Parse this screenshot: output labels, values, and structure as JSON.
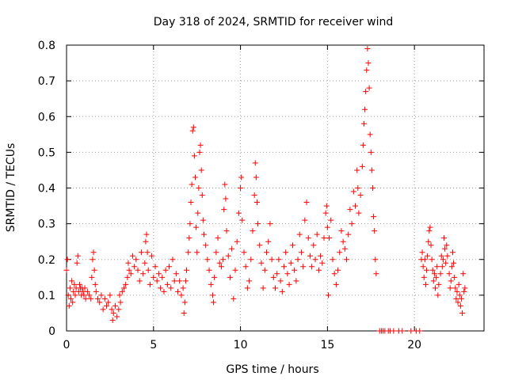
{
  "chart_data": {
    "type": "scatter",
    "title": "Day 318 of 2024, SRMTID for receiver wind",
    "xlabel": "GPS time / hours",
    "ylabel": "SRMTID / TECUs",
    "xlim": [
      0,
      24
    ],
    "ylim": [
      0,
      0.8
    ],
    "xticks": [
      0,
      5,
      10,
      15,
      20
    ],
    "yticks": [
      0,
      0.1,
      0.2,
      0.3,
      0.4,
      0.5,
      0.6,
      0.7,
      0.8
    ],
    "grid": true,
    "marker": "plus",
    "series": [
      {
        "name": "SRMTID",
        "color": "#ff0000",
        "points": [
          [
            0.0,
            0.17
          ],
          [
            0.05,
            0.2
          ],
          [
            0.1,
            0.1
          ],
          [
            0.15,
            0.07
          ],
          [
            0.2,
            0.12
          ],
          [
            0.25,
            0.09
          ],
          [
            0.3,
            0.14
          ],
          [
            0.35,
            0.08
          ],
          [
            0.4,
            0.11
          ],
          [
            0.45,
            0.13
          ],
          [
            0.5,
            0.1
          ],
          [
            0.55,
            0.12
          ],
          [
            0.6,
            0.19
          ],
          [
            0.65,
            0.21
          ],
          [
            0.7,
            0.11
          ],
          [
            0.75,
            0.13
          ],
          [
            0.8,
            0.12
          ],
          [
            0.85,
            0.1
          ],
          [
            0.9,
            0.12
          ],
          [
            0.95,
            0.11
          ],
          [
            1.0,
            0.1
          ],
          [
            1.05,
            0.12
          ],
          [
            1.1,
            0.09
          ],
          [
            1.2,
            0.11
          ],
          [
            1.3,
            0.1
          ],
          [
            1.4,
            0.09
          ],
          [
            1.45,
            0.15
          ],
          [
            1.5,
            0.2
          ],
          [
            1.55,
            0.22
          ],
          [
            1.6,
            0.17
          ],
          [
            1.65,
            0.13
          ],
          [
            1.7,
            0.11
          ],
          [
            1.8,
            0.09
          ],
          [
            1.9,
            0.08
          ],
          [
            2.0,
            0.1
          ],
          [
            2.1,
            0.06
          ],
          [
            2.2,
            0.09
          ],
          [
            2.3,
            0.07
          ],
          [
            2.4,
            0.08
          ],
          [
            2.5,
            0.1
          ],
          [
            2.6,
            0.06
          ],
          [
            2.65,
            0.03
          ],
          [
            2.7,
            0.05
          ],
          [
            2.8,
            0.07
          ],
          [
            2.9,
            0.04
          ],
          [
            3.0,
            0.06
          ],
          [
            3.05,
            0.1
          ],
          [
            3.1,
            0.08
          ],
          [
            3.2,
            0.11
          ],
          [
            3.3,
            0.12
          ],
          [
            3.4,
            0.13
          ],
          [
            3.5,
            0.15
          ],
          [
            3.55,
            0.19
          ],
          [
            3.6,
            0.17
          ],
          [
            3.7,
            0.16
          ],
          [
            3.8,
            0.21
          ],
          [
            3.9,
            0.18
          ],
          [
            4.0,
            0.2
          ],
          [
            4.1,
            0.17
          ],
          [
            4.2,
            0.14
          ],
          [
            4.3,
            0.22
          ],
          [
            4.4,
            0.16
          ],
          [
            4.5,
            0.19
          ],
          [
            4.55,
            0.25
          ],
          [
            4.6,
            0.27
          ],
          [
            4.65,
            0.22
          ],
          [
            4.7,
            0.17
          ],
          [
            4.8,
            0.13
          ],
          [
            4.9,
            0.21
          ],
          [
            5.0,
            0.15
          ],
          [
            5.1,
            0.18
          ],
          [
            5.2,
            0.14
          ],
          [
            5.3,
            0.16
          ],
          [
            5.4,
            0.12
          ],
          [
            5.5,
            0.15
          ],
          [
            5.6,
            0.11
          ],
          [
            5.7,
            0.17
          ],
          [
            5.8,
            0.13
          ],
          [
            5.9,
            0.18
          ],
          [
            6.0,
            0.12
          ],
          [
            6.1,
            0.2
          ],
          [
            6.2,
            0.14
          ],
          [
            6.3,
            0.16
          ],
          [
            6.4,
            0.11
          ],
          [
            6.5,
            0.14
          ],
          [
            6.6,
            0.1
          ],
          [
            6.7,
            0.12
          ],
          [
            6.75,
            0.05
          ],
          [
            6.8,
            0.08
          ],
          [
            6.85,
            0.14
          ],
          [
            6.9,
            0.17
          ],
          [
            7.0,
            0.22
          ],
          [
            7.05,
            0.26
          ],
          [
            7.1,
            0.3
          ],
          [
            7.15,
            0.36
          ],
          [
            7.2,
            0.41
          ],
          [
            7.25,
            0.56
          ],
          [
            7.3,
            0.57
          ],
          [
            7.35,
            0.49
          ],
          [
            7.4,
            0.43
          ],
          [
            7.45,
            0.29
          ],
          [
            7.5,
            0.22
          ],
          [
            7.55,
            0.33
          ],
          [
            7.6,
            0.4
          ],
          [
            7.65,
            0.5
          ],
          [
            7.7,
            0.52
          ],
          [
            7.75,
            0.45
          ],
          [
            7.8,
            0.38
          ],
          [
            7.85,
            0.31
          ],
          [
            7.9,
            0.27
          ],
          [
            8.0,
            0.24
          ],
          [
            8.1,
            0.2
          ],
          [
            8.2,
            0.17
          ],
          [
            8.3,
            0.13
          ],
          [
            8.4,
            0.1
          ],
          [
            8.45,
            0.08
          ],
          [
            8.5,
            0.15
          ],
          [
            8.6,
            0.22
          ],
          [
            8.7,
            0.26
          ],
          [
            8.8,
            0.19
          ],
          [
            8.9,
            0.18
          ],
          [
            9.0,
            0.2
          ],
          [
            9.05,
            0.34
          ],
          [
            9.1,
            0.41
          ],
          [
            9.15,
            0.37
          ],
          [
            9.2,
            0.28
          ],
          [
            9.3,
            0.21
          ],
          [
            9.4,
            0.15
          ],
          [
            9.5,
            0.23
          ],
          [
            9.6,
            0.09
          ],
          [
            9.7,
            0.17
          ],
          [
            9.8,
            0.25
          ],
          [
            9.9,
            0.33
          ],
          [
            10.0,
            0.4
          ],
          [
            10.05,
            0.43
          ],
          [
            10.1,
            0.31
          ],
          [
            10.2,
            0.22
          ],
          [
            10.3,
            0.18
          ],
          [
            10.4,
            0.12
          ],
          [
            10.5,
            0.14
          ],
          [
            10.6,
            0.2
          ],
          [
            10.7,
            0.28
          ],
          [
            10.8,
            0.38
          ],
          [
            10.85,
            0.47
          ],
          [
            10.9,
            0.43
          ],
          [
            10.95,
            0.36
          ],
          [
            11.0,
            0.3
          ],
          [
            11.1,
            0.24
          ],
          [
            11.2,
            0.19
          ],
          [
            11.3,
            0.12
          ],
          [
            11.4,
            0.17
          ],
          [
            11.5,
            0.22
          ],
          [
            11.6,
            0.25
          ],
          [
            11.7,
            0.3
          ],
          [
            11.8,
            0.2
          ],
          [
            11.9,
            0.15
          ],
          [
            12.0,
            0.12
          ],
          [
            12.1,
            0.16
          ],
          [
            12.2,
            0.2
          ],
          [
            12.3,
            0.14
          ],
          [
            12.4,
            0.11
          ],
          [
            12.5,
            0.18
          ],
          [
            12.6,
            0.22
          ],
          [
            12.7,
            0.16
          ],
          [
            12.8,
            0.13
          ],
          [
            12.9,
            0.19
          ],
          [
            13.0,
            0.24
          ],
          [
            13.1,
            0.17
          ],
          [
            13.2,
            0.14
          ],
          [
            13.3,
            0.2
          ],
          [
            13.4,
            0.27
          ],
          [
            13.5,
            0.22
          ],
          [
            13.6,
            0.18
          ],
          [
            13.7,
            0.31
          ],
          [
            13.8,
            0.36
          ],
          [
            13.9,
            0.26
          ],
          [
            14.0,
            0.21
          ],
          [
            14.1,
            0.18
          ],
          [
            14.2,
            0.24
          ],
          [
            14.3,
            0.2
          ],
          [
            14.4,
            0.27
          ],
          [
            14.5,
            0.17
          ],
          [
            14.6,
            0.21
          ],
          [
            14.7,
            0.19
          ],
          [
            14.8,
            0.26
          ],
          [
            14.9,
            0.33
          ],
          [
            14.95,
            0.35
          ],
          [
            15.0,
            0.29
          ],
          [
            15.05,
            0.1
          ],
          [
            15.1,
            0.26
          ],
          [
            15.2,
            0.31
          ],
          [
            15.3,
            0.2
          ],
          [
            15.4,
            0.16
          ],
          [
            15.5,
            0.13
          ],
          [
            15.6,
            0.17
          ],
          [
            15.7,
            0.22
          ],
          [
            15.8,
            0.28
          ],
          [
            15.9,
            0.25
          ],
          [
            16.0,
            0.23
          ],
          [
            16.1,
            0.2
          ],
          [
            16.2,
            0.27
          ],
          [
            16.3,
            0.34
          ],
          [
            16.4,
            0.3
          ],
          [
            16.5,
            0.39
          ],
          [
            16.6,
            0.35
          ],
          [
            16.7,
            0.45
          ],
          [
            16.75,
            0.4
          ],
          [
            16.8,
            0.33
          ],
          [
            16.9,
            0.38
          ],
          [
            17.0,
            0.46
          ],
          [
            17.05,
            0.52
          ],
          [
            17.1,
            0.58
          ],
          [
            17.15,
            0.62
          ],
          [
            17.2,
            0.67
          ],
          [
            17.25,
            0.73
          ],
          [
            17.3,
            0.79
          ],
          [
            17.35,
            0.75
          ],
          [
            17.4,
            0.68
          ],
          [
            17.45,
            0.55
          ],
          [
            17.5,
            0.5
          ],
          [
            17.55,
            0.45
          ],
          [
            17.6,
            0.4
          ],
          [
            17.65,
            0.32
          ],
          [
            17.7,
            0.28
          ],
          [
            17.75,
            0.2
          ],
          [
            17.8,
            0.16
          ],
          [
            18.0,
            0.0
          ],
          [
            18.1,
            0.0
          ],
          [
            18.2,
            0.0
          ],
          [
            18.3,
            0.0
          ],
          [
            18.5,
            0.0
          ],
          [
            18.6,
            0.0
          ],
          [
            18.8,
            0.0
          ],
          [
            19.1,
            0.0
          ],
          [
            19.3,
            0.0
          ],
          [
            19.8,
            0.0
          ],
          [
            20.1,
            0.0
          ],
          [
            20.3,
            0.0
          ],
          [
            20.4,
            0.2
          ],
          [
            20.45,
            0.22
          ],
          [
            20.5,
            0.18
          ],
          [
            20.55,
            0.15
          ],
          [
            20.6,
            0.2
          ],
          [
            20.65,
            0.13
          ],
          [
            20.7,
            0.17
          ],
          [
            20.75,
            0.21
          ],
          [
            20.8,
            0.25
          ],
          [
            20.85,
            0.28
          ],
          [
            20.9,
            0.29
          ],
          [
            20.95,
            0.24
          ],
          [
            21.0,
            0.2
          ],
          [
            21.05,
            0.17
          ],
          [
            21.1,
            0.14
          ],
          [
            21.15,
            0.16
          ],
          [
            21.2,
            0.12
          ],
          [
            21.25,
            0.15
          ],
          [
            21.3,
            0.18
          ],
          [
            21.35,
            0.1
          ],
          [
            21.4,
            0.13
          ],
          [
            21.5,
            0.16
          ],
          [
            21.55,
            0.21
          ],
          [
            21.6,
            0.18
          ],
          [
            21.65,
            0.2
          ],
          [
            21.7,
            0.26
          ],
          [
            21.75,
            0.23
          ],
          [
            21.8,
            0.19
          ],
          [
            21.85,
            0.24
          ],
          [
            21.9,
            0.21
          ],
          [
            22.0,
            0.16
          ],
          [
            22.05,
            0.12
          ],
          [
            22.1,
            0.14
          ],
          [
            22.15,
            0.18
          ],
          [
            22.2,
            0.22
          ],
          [
            22.25,
            0.19
          ],
          [
            22.3,
            0.15
          ],
          [
            22.35,
            0.12
          ],
          [
            22.4,
            0.09
          ],
          [
            22.45,
            0.11
          ],
          [
            22.5,
            0.08
          ],
          [
            22.55,
            0.13
          ],
          [
            22.6,
            0.1
          ],
          [
            22.65,
            0.07
          ],
          [
            22.7,
            0.09
          ],
          [
            22.75,
            0.05
          ],
          [
            22.8,
            0.16
          ],
          [
            22.85,
            0.11
          ],
          [
            22.9,
            0.12
          ]
        ]
      }
    ]
  }
}
